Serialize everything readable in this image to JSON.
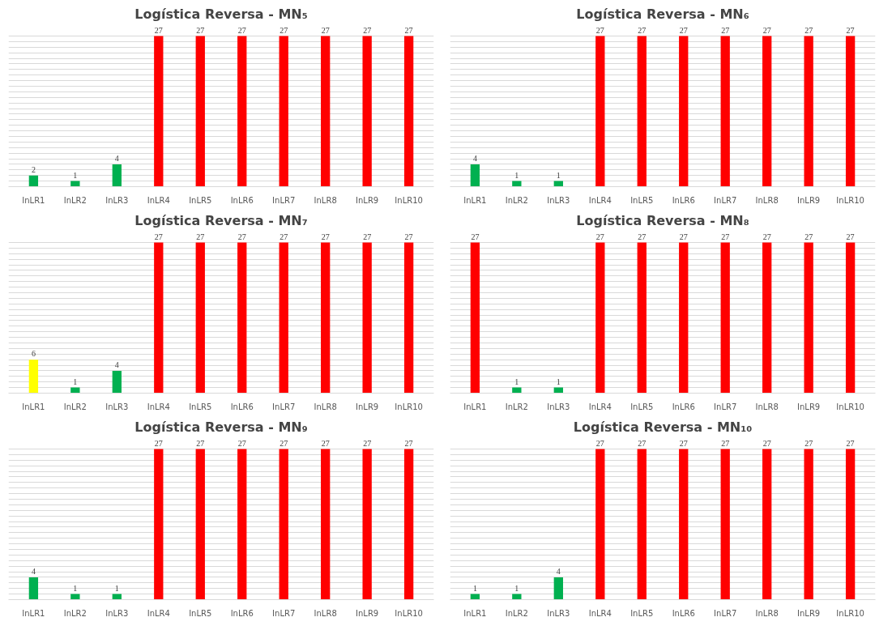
{
  "chart_data": [
    {
      "type": "bar",
      "title": "Logística Reversa - MN₅",
      "categories": [
        "InLR1",
        "InLR2",
        "InLR3",
        "InLR4",
        "InLR5",
        "InLR6",
        "InLR7",
        "InLR8",
        "InLR9",
        "InLR10"
      ],
      "values": [
        2,
        1,
        4,
        27,
        27,
        27,
        27,
        27,
        27,
        27
      ],
      "colors": [
        "#00b050",
        "#00b050",
        "#00b050",
        "#ff0000",
        "#ff0000",
        "#ff0000",
        "#ff0000",
        "#ff0000",
        "#ff0000",
        "#ff0000"
      ],
      "data_labels": true,
      "ylim": [
        0,
        27
      ],
      "yticks": [
        {
          "value": 0,
          "label": null
        },
        {
          "value": 1,
          "label": null
        },
        {
          "value": 2,
          "label": null
        },
        {
          "value": 3,
          "label": null
        },
        {
          "value": 4,
          "label": null
        },
        {
          "value": 5,
          "label": null
        },
        {
          "value": 6,
          "label": null
        },
        {
          "value": 7,
          "label": null
        },
        {
          "value": 8,
          "label": null
        },
        {
          "value": 9,
          "label": null
        },
        {
          "value": 10,
          "label": null
        },
        {
          "value": 11,
          "label": null
        },
        {
          "value": 12,
          "label": null
        },
        {
          "value": 13,
          "label": null
        },
        {
          "value": 14,
          "label": null
        },
        {
          "value": 15,
          "label": null
        },
        {
          "value": 16,
          "label": null
        },
        {
          "value": 17,
          "label": null
        },
        {
          "value": 18,
          "label": null
        },
        {
          "value": 19,
          "label": null
        },
        {
          "value": 20,
          "label": null
        },
        {
          "value": 21,
          "label": null
        },
        {
          "value": 22,
          "label": null
        },
        {
          "value": 23,
          "label": null
        },
        {
          "value": 24,
          "label": null
        },
        {
          "value": 25,
          "label": null
        },
        {
          "value": 26,
          "label": null
        },
        {
          "value": 27,
          "label": null
        }
      ],
      "grid": "y",
      "tick_labels": "x"
    },
    {
      "type": "bar",
      "title": "Logística Reversa - MN₆",
      "categories": [
        "InLR1",
        "InLR2",
        "InLR3",
        "InLR4",
        "InLR5",
        "InLR6",
        "InLR7",
        "InLR8",
        "InLR9",
        "InLR10"
      ],
      "values": [
        4,
        1,
        1,
        27,
        27,
        27,
        27,
        27,
        27,
        27
      ],
      "colors": [
        "#00b050",
        "#00b050",
        "#00b050",
        "#ff0000",
        "#ff0000",
        "#ff0000",
        "#ff0000",
        "#ff0000",
        "#ff0000",
        "#ff0000"
      ],
      "data_labels": true,
      "ylim": [
        0,
        27
      ],
      "yticks": [
        {
          "value": 0,
          "label": null
        },
        {
          "value": 1,
          "label": null
        },
        {
          "value": 2,
          "label": null
        },
        {
          "value": 3,
          "label": null
        },
        {
          "value": 4,
          "label": null
        },
        {
          "value": 5,
          "label": null
        },
        {
          "value": 6,
          "label": null
        },
        {
          "value": 7,
          "label": null
        },
        {
          "value": 8,
          "label": null
        },
        {
          "value": 9,
          "label": null
        },
        {
          "value": 10,
          "label": null
        },
        {
          "value": 11,
          "label": null
        },
        {
          "value": 12,
          "label": null
        },
        {
          "value": 13,
          "label": null
        },
        {
          "value": 14,
          "label": null
        },
        {
          "value": 15,
          "label": null
        },
        {
          "value": 16,
          "label": null
        },
        {
          "value": 17,
          "label": null
        },
        {
          "value": 18,
          "label": null
        },
        {
          "value": 19,
          "label": null
        },
        {
          "value": 20,
          "label": null
        },
        {
          "value": 21,
          "label": null
        },
        {
          "value": 22,
          "label": null
        },
        {
          "value": 23,
          "label": null
        },
        {
          "value": 24,
          "label": null
        },
        {
          "value": 25,
          "label": null
        },
        {
          "value": 26,
          "label": null
        },
        {
          "value": 27,
          "label": null
        }
      ],
      "grid": "y",
      "tick_labels": "x"
    },
    {
      "type": "bar",
      "title": "Logística Reversa - MN₇",
      "categories": [
        "InLR1",
        "InLR2",
        "InLR3",
        "InLR4",
        "InLR5",
        "InLR6",
        "InLR7",
        "InLR8",
        "InLR9",
        "InLR10"
      ],
      "values": [
        6,
        1,
        4,
        27,
        27,
        27,
        27,
        27,
        27,
        27
      ],
      "colors": [
        "#ffff00",
        "#00b050",
        "#00b050",
        "#ff0000",
        "#ff0000",
        "#ff0000",
        "#ff0000",
        "#ff0000",
        "#ff0000",
        "#ff0000"
      ],
      "data_labels": true,
      "ylim": [
        0,
        27
      ],
      "yticks": [
        {
          "value": 0,
          "label": null
        },
        {
          "value": 1,
          "label": null
        },
        {
          "value": 2,
          "label": null
        },
        {
          "value": 3,
          "label": null
        },
        {
          "value": 4,
          "label": null
        },
        {
          "value": 5,
          "label": null
        },
        {
          "value": 6,
          "label": null
        },
        {
          "value": 7,
          "label": null
        },
        {
          "value": 8,
          "label": null
        },
        {
          "value": 9,
          "label": null
        },
        {
          "value": 10,
          "label": null
        },
        {
          "value": 11,
          "label": null
        },
        {
          "value": 12,
          "label": null
        },
        {
          "value": 13,
          "label": null
        },
        {
          "value": 14,
          "label": null
        },
        {
          "value": 15,
          "label": null
        },
        {
          "value": 16,
          "label": null
        },
        {
          "value": 17,
          "label": null
        },
        {
          "value": 18,
          "label": null
        },
        {
          "value": 19,
          "label": null
        },
        {
          "value": 20,
          "label": null
        },
        {
          "value": 21,
          "label": null
        },
        {
          "value": 22,
          "label": null
        },
        {
          "value": 23,
          "label": null
        },
        {
          "value": 24,
          "label": null
        },
        {
          "value": 25,
          "label": null
        },
        {
          "value": 26,
          "label": null
        },
        {
          "value": 27,
          "label": null
        }
      ],
      "grid": "y",
      "tick_labels": "x"
    },
    {
      "type": "bar",
      "title": "Logística Reversa - MN₈",
      "categories": [
        "InLR1",
        "InLR2",
        "InLR3",
        "InLR4",
        "InLR5",
        "InLR6",
        "InLR7",
        "InLR8",
        "InLR9",
        "InLR10"
      ],
      "values": [
        27,
        1,
        1,
        27,
        27,
        27,
        27,
        27,
        27,
        27
      ],
      "colors": [
        "#ff0000",
        "#00b050",
        "#00b050",
        "#ff0000",
        "#ff0000",
        "#ff0000",
        "#ff0000",
        "#ff0000",
        "#ff0000",
        "#ff0000"
      ],
      "data_labels": true,
      "ylim": [
        0,
        27
      ],
      "yticks": [
        {
          "value": 0,
          "label": null
        },
        {
          "value": 1,
          "label": null
        },
        {
          "value": 2,
          "label": null
        },
        {
          "value": 3,
          "label": null
        },
        {
          "value": 4,
          "label": null
        },
        {
          "value": 5,
          "label": null
        },
        {
          "value": 6,
          "label": null
        },
        {
          "value": 7,
          "label": null
        },
        {
          "value": 8,
          "label": null
        },
        {
          "value": 9,
          "label": null
        },
        {
          "value": 10,
          "label": null
        },
        {
          "value": 11,
          "label": null
        },
        {
          "value": 12,
          "label": null
        },
        {
          "value": 13,
          "label": null
        },
        {
          "value": 14,
          "label": null
        },
        {
          "value": 15,
          "label": null
        },
        {
          "value": 16,
          "label": null
        },
        {
          "value": 17,
          "label": null
        },
        {
          "value": 18,
          "label": null
        },
        {
          "value": 19,
          "label": null
        },
        {
          "value": 20,
          "label": null
        },
        {
          "value": 21,
          "label": null
        },
        {
          "value": 22,
          "label": null
        },
        {
          "value": 23,
          "label": null
        },
        {
          "value": 24,
          "label": null
        },
        {
          "value": 25,
          "label": null
        },
        {
          "value": 26,
          "label": null
        },
        {
          "value": 27,
          "label": null
        }
      ],
      "grid": "y",
      "tick_labels": "x"
    },
    {
      "type": "bar",
      "title": "Logística Reversa - MN₉",
      "categories": [
        "InLR1",
        "InLR2",
        "InLR3",
        "InLR4",
        "InLR5",
        "InLR6",
        "InLR7",
        "InLR8",
        "InLR9",
        "InLR10"
      ],
      "values": [
        4,
        1,
        1,
        27,
        27,
        27,
        27,
        27,
        27,
        27
      ],
      "colors": [
        "#00b050",
        "#00b050",
        "#00b050",
        "#ff0000",
        "#ff0000",
        "#ff0000",
        "#ff0000",
        "#ff0000",
        "#ff0000",
        "#ff0000"
      ],
      "data_labels": true,
      "ylim": [
        0,
        27
      ],
      "yticks": [
        {
          "value": 0,
          "label": null
        },
        {
          "value": 1,
          "label": null
        },
        {
          "value": 2,
          "label": null
        },
        {
          "value": 3,
          "label": null
        },
        {
          "value": 4,
          "label": null
        },
        {
          "value": 5,
          "label": null
        },
        {
          "value": 6,
          "label": null
        },
        {
          "value": 7,
          "label": null
        },
        {
          "value": 8,
          "label": null
        },
        {
          "value": 9,
          "label": null
        },
        {
          "value": 10,
          "label": null
        },
        {
          "value": 11,
          "label": null
        },
        {
          "value": 12,
          "label": null
        },
        {
          "value": 13,
          "label": null
        },
        {
          "value": 14,
          "label": null
        },
        {
          "value": 15,
          "label": null
        },
        {
          "value": 16,
          "label": null
        },
        {
          "value": 17,
          "label": null
        },
        {
          "value": 18,
          "label": null
        },
        {
          "value": 19,
          "label": null
        },
        {
          "value": 20,
          "label": null
        },
        {
          "value": 21,
          "label": null
        },
        {
          "value": 22,
          "label": null
        },
        {
          "value": 23,
          "label": null
        },
        {
          "value": 24,
          "label": null
        },
        {
          "value": 25,
          "label": null
        },
        {
          "value": 26,
          "label": null
        },
        {
          "value": 27,
          "label": null
        }
      ],
      "grid": "y",
      "tick_labels": "x"
    },
    {
      "type": "bar",
      "title": "Logística Reversa - MN₁₀",
      "categories": [
        "InLR1",
        "InLR2",
        "InLR3",
        "InLR4",
        "InLR5",
        "InLR6",
        "InLR7",
        "InLR8",
        "InLR9",
        "InLR10"
      ],
      "values": [
        1,
        1,
        4,
        27,
        27,
        27,
        27,
        27,
        27,
        27
      ],
      "colors": [
        "#00b050",
        "#00b050",
        "#00b050",
        "#ff0000",
        "#ff0000",
        "#ff0000",
        "#ff0000",
        "#ff0000",
        "#ff0000",
        "#ff0000"
      ],
      "data_labels": true,
      "ylim": [
        0,
        27
      ],
      "yticks": [
        {
          "value": 0,
          "label": null
        },
        {
          "value": 1,
          "label": null
        },
        {
          "value": 2,
          "label": null
        },
        {
          "value": 3,
          "label": null
        },
        {
          "value": 4,
          "label": null
        },
        {
          "value": 5,
          "label": null
        },
        {
          "value": 6,
          "label": null
        },
        {
          "value": 7,
          "label": null
        },
        {
          "value": 8,
          "label": null
        },
        {
          "value": 9,
          "label": null
        },
        {
          "value": 10,
          "label": null
        },
        {
          "value": 11,
          "label": null
        },
        {
          "value": 12,
          "label": null
        },
        {
          "value": 13,
          "label": null
        },
        {
          "value": 14,
          "label": null
        },
        {
          "value": 15,
          "label": null
        },
        {
          "value": 16,
          "label": null
        },
        {
          "value": 17,
          "label": null
        },
        {
          "value": 18,
          "label": null
        },
        {
          "value": 19,
          "label": null
        },
        {
          "value": 20,
          "label": null
        },
        {
          "value": 21,
          "label": null
        },
        {
          "value": 22,
          "label": null
        },
        {
          "value": 23,
          "label": null
        },
        {
          "value": 24,
          "label": null
        },
        {
          "value": 25,
          "label": null
        },
        {
          "value": 26,
          "label": null
        },
        {
          "value": 27,
          "label": null
        }
      ],
      "grid": "y",
      "tick_labels": "x"
    }
  ]
}
